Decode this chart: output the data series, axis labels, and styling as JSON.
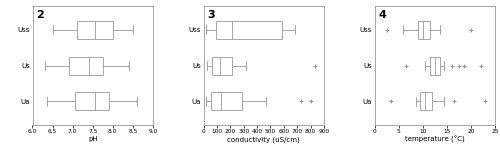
{
  "fig2": {
    "title": "2",
    "xlabel": "pH",
    "xlim": [
      6.0,
      9.0
    ],
    "xticks": [
      6.0,
      6.5,
      7.0,
      7.5,
      8.0,
      8.5,
      9.0
    ],
    "xtick_labels": [
      "6.0",
      "6.5",
      "7.0",
      "7.5",
      "8.0",
      "8.5",
      "9.0"
    ],
    "yticks_labels": [
      "Uss",
      "Us",
      "Ua"
    ],
    "boxes": [
      {
        "whislo": 6.5,
        "q1": 7.1,
        "med": 7.55,
        "q3": 8.0,
        "whishi": 8.5,
        "fliers": []
      },
      {
        "whislo": 6.3,
        "q1": 6.9,
        "med": 7.4,
        "q3": 7.75,
        "whishi": 8.4,
        "fliers": []
      },
      {
        "whislo": 6.35,
        "q1": 7.05,
        "med": 7.55,
        "q3": 7.9,
        "whishi": 8.6,
        "fliers": []
      }
    ]
  },
  "fig3": {
    "title": "3",
    "xlabel": "conductivity (uS/cm)",
    "xlim": [
      0,
      900
    ],
    "xticks": [
      0,
      100,
      200,
      300,
      400,
      500,
      600,
      700,
      800,
      900
    ],
    "xtick_labels": [
      "0",
      "100",
      "200",
      "300",
      "400",
      "500",
      "600",
      "700",
      "800",
      "900"
    ],
    "yticks_labels": [
      "Uss",
      "Us",
      "Ua"
    ],
    "boxes": [
      {
        "whislo": 15,
        "q1": 95,
        "med": 210,
        "q3": 590,
        "whishi": 680,
        "fliers": []
      },
      {
        "whislo": 25,
        "q1": 60,
        "med": 120,
        "q3": 210,
        "whishi": 320,
        "fliers": [
          830
        ]
      },
      {
        "whislo": 18,
        "q1": 55,
        "med": 130,
        "q3": 290,
        "whishi": 470,
        "fliers": [
          730,
          800
        ]
      }
    ]
  },
  "fig4": {
    "title": "4",
    "xlabel": "temperature (°C)",
    "xlim": [
      0,
      25
    ],
    "xticks": [
      0,
      5,
      10,
      15,
      20,
      25
    ],
    "xtick_labels": [
      "0",
      "5",
      "10",
      "15",
      "20",
      "25"
    ],
    "yticks_labels": [
      "Uss",
      "Us",
      "Ua"
    ],
    "boxes": [
      {
        "whislo": 6.0,
        "q1": 9.0,
        "med": 10.0,
        "q3": 11.5,
        "whishi": 13.5,
        "fliers": [
          2.5,
          20.0
        ]
      },
      {
        "whislo": 10.5,
        "q1": 11.5,
        "med": 12.5,
        "q3": 13.5,
        "whishi": 14.5,
        "fliers": [
          6.5,
          16.0,
          17.5,
          18.5,
          22.0
        ]
      },
      {
        "whislo": 8.5,
        "q1": 9.5,
        "med": 10.5,
        "q3": 12.0,
        "whishi": 14.5,
        "fliers": [
          3.5,
          16.5,
          23.0
        ]
      }
    ]
  },
  "line_color": "#999999",
  "flier_color": "#999999",
  "background_color": "#ffffff"
}
